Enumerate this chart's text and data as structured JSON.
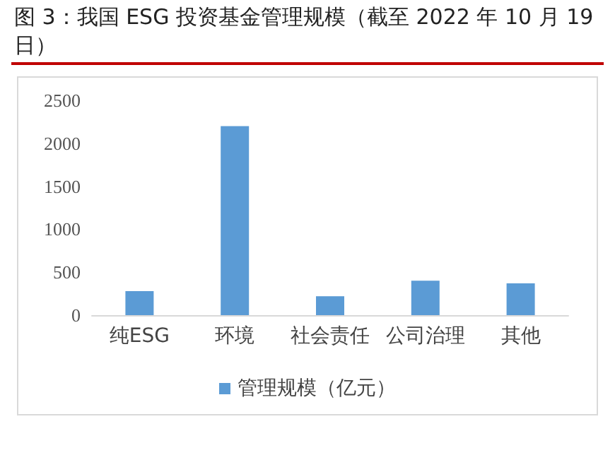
{
  "chart_data": {
    "type": "bar",
    "title": "图 3：我国 ESG 投资基金管理规模（截至 2022 年 10 月 19 日）",
    "categories": [
      "纯ESG",
      "环境",
      "社会责任",
      "公司治理",
      "其他"
    ],
    "series": [
      {
        "name": "管理规模（亿元）",
        "color": "#5b9bd5",
        "values": [
          280,
          2200,
          220,
          400,
          370
        ]
      }
    ],
    "ylim": [
      0,
      2500
    ],
    "yticks": [
      0,
      500,
      1000,
      1500,
      2000,
      2500
    ],
    "grid": false,
    "legend": "bottom"
  }
}
